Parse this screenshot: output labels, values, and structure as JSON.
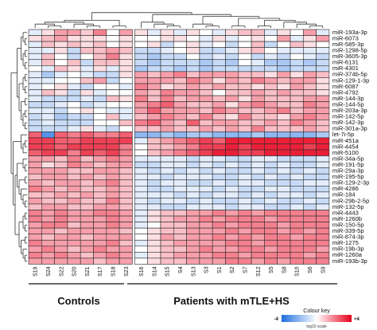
{
  "chart_data": {
    "type": "heatmap",
    "columns": [
      "S19",
      "S24",
      "S22",
      "S20",
      "S21",
      "S17",
      "S18",
      "S23",
      "S16",
      "S14",
      "S15",
      "S4",
      "S13",
      "S3",
      "S1",
      "S2",
      "S7",
      "S12",
      "S5",
      "S8",
      "S10",
      "S6",
      "S9"
    ],
    "rows": [
      "miR-193a-3p",
      "miR-6073",
      "miR-585-3p",
      "miR-1298-5p",
      "miR-3605-3p",
      "miR-6131",
      "miR-4301",
      "miR-374b-5p",
      "miR-129-1-3p",
      "miR-6087",
      "miR-4792",
      "miR-144-3p",
      "miR-144-5p",
      "miR-203a-3p",
      "miR-142-5p",
      "miR-142-3p",
      "miR-301a-3p",
      "let-7i-5p",
      "miR-451a",
      "miR-4454",
      "miR-5100",
      "miR-34a-5p",
      "miR-191-5p",
      "miR-29a-3p",
      "miR-195-5p",
      "miR-129-2-3p",
      "miR-4286",
      "miR-184",
      "miR-29b-2-5p",
      "miR-132-5p",
      "miR-4443",
      "miR-1260b",
      "miR-150-5p",
      "miR-339-5p",
      "miR-874-3p",
      "miR-1275",
      "miR-19b-3p",
      "miR-1260a",
      "miR-193b-3p"
    ],
    "values": [
      [
        -0.5,
        0.5,
        1.5,
        1.5,
        0.8,
        2,
        0,
        1.5,
        0.5,
        -0.5,
        0.5,
        -0.5,
        0.5,
        0,
        -0.5,
        0.5,
        1,
        1,
        -0.5,
        0.5,
        0,
        1.5,
        -0.5
      ],
      [
        0.5,
        1,
        1.5,
        0.5,
        0.5,
        0.5,
        0,
        0.5,
        0,
        0,
        0.5,
        0.5,
        0,
        -0.5,
        0.5,
        -0.5,
        0,
        0.5,
        0,
        1.5,
        -0.5,
        0.5,
        1.5
      ],
      [
        -0.5,
        1,
        0.5,
        1,
        0.5,
        1,
        0,
        0.5,
        0,
        0.5,
        -1,
        0,
        0.5,
        -0.5,
        0,
        -1,
        0,
        1,
        -1,
        0,
        1,
        0.5,
        0
      ],
      [
        -0.5,
        -0.5,
        0.5,
        -1,
        1,
        1,
        1.5,
        1,
        -1,
        -1,
        -0.5,
        0,
        0.5,
        -1,
        -1,
        -0.5,
        0.5,
        1,
        0,
        -0.5,
        -0.5,
        -0.5,
        -0.5
      ],
      [
        -0.5,
        1,
        0,
        -1,
        0,
        1,
        2,
        0.5,
        -1,
        -1.5,
        -1,
        -1,
        0,
        -1,
        -0.5,
        -1,
        0,
        -1,
        -0.5,
        -1,
        0,
        -0.5,
        -1
      ],
      [
        -0.5,
        1,
        0,
        1,
        -1,
        1,
        1,
        0.5,
        -1,
        -1.5,
        -1,
        -1,
        -1,
        -1.5,
        -1,
        -1.5,
        0,
        -0.5,
        -1.5,
        -1.5,
        -1,
        -1.5,
        -1
      ],
      [
        0,
        -0.5,
        1,
        0.5,
        -0.5,
        0.5,
        -0.5,
        0.5,
        -1.5,
        -1,
        -1,
        -1.5,
        -1,
        -1.5,
        -1,
        -1,
        -1,
        -1,
        -1,
        -1.5,
        -1,
        -1,
        -1
      ],
      [
        -0.5,
        -1.5,
        -0.5,
        0,
        -0.5,
        -1,
        -1,
        0.5,
        1.5,
        1,
        1.5,
        2,
        1,
        1.5,
        1.5,
        1.5,
        1,
        1,
        0.5,
        1.5,
        0.5,
        1.5,
        1
      ],
      [
        -0.5,
        -0.5,
        0,
        0,
        1,
        1.5,
        -1,
        0,
        1.5,
        1.5,
        1.5,
        1,
        2,
        1.5,
        0.5,
        1.5,
        1,
        2,
        1.5,
        1,
        1.5,
        1.5,
        0.5
      ],
      [
        -0.5,
        0,
        0.5,
        -0.5,
        -1,
        0,
        0,
        -0.5,
        2,
        1.5,
        0.5,
        1,
        1.5,
        1,
        1.5,
        1,
        1,
        0.5,
        1,
        0.5,
        1.5,
        1,
        0.5
      ],
      [
        -0.5,
        1,
        0.5,
        -1,
        0.5,
        -0.5,
        0,
        0,
        1.5,
        1,
        2,
        1.5,
        1.5,
        1,
        0,
        1,
        1,
        1.5,
        1,
        1.5,
        1,
        1,
        0.5
      ],
      [
        -0.5,
        -1,
        -1,
        -1,
        -0.5,
        -1,
        1,
        0.5,
        2,
        1,
        2,
        1,
        1.5,
        1.5,
        1,
        1.5,
        0.5,
        1.5,
        1,
        1,
        1,
        1.5,
        1.5
      ],
      [
        -1,
        -1,
        -0.5,
        0,
        -1,
        -0.5,
        0,
        0,
        1.5,
        2,
        2.5,
        1.5,
        1,
        1,
        1.5,
        0.5,
        1.5,
        2,
        1.5,
        1,
        1,
        2,
        1.5
      ],
      [
        -0.5,
        -0.5,
        -1,
        0,
        0.5,
        0,
        -0.5,
        -0.5,
        1.5,
        2.5,
        1.5,
        1.5,
        1.5,
        1,
        2,
        1.5,
        1,
        1,
        1.5,
        2,
        1,
        1.5,
        1.5
      ],
      [
        -1,
        -0.5,
        -1.5,
        -1,
        -1,
        0,
        1,
        -0.5,
        1,
        1.5,
        2,
        1.5,
        1,
        2,
        1,
        0.5,
        2,
        1,
        1,
        0.5,
        1.5,
        2,
        1.5
      ],
      [
        -1,
        -0.5,
        -1,
        -1,
        -1,
        0,
        0,
        1,
        2,
        2.5,
        1.5,
        1,
        2.5,
        1,
        1.5,
        1.5,
        1,
        1,
        1.5,
        1,
        2,
        1.5,
        1
      ],
      [
        -1,
        -1,
        -1,
        -0.5,
        0.5,
        -0.5,
        -1,
        0,
        1,
        1,
        1.5,
        1,
        1,
        1.5,
        1,
        1.5,
        1,
        2,
        1,
        1,
        1,
        1.5,
        1
      ],
      [
        2.5,
        -3,
        2.5,
        2,
        2.5,
        2,
        2,
        2.5,
        -2,
        -2,
        -1.5,
        -2,
        -1.5,
        -1.5,
        -2,
        -2,
        -2,
        -1.5,
        -2,
        -2,
        -2,
        -2,
        -1.5
      ],
      [
        3,
        3,
        2.5,
        2.5,
        3,
        3,
        3,
        3,
        -0.5,
        1,
        1.5,
        2,
        2.5,
        3,
        2.5,
        3.5,
        3.5,
        3.5,
        3.5,
        3.5,
        3.5,
        3.5,
        3.5
      ],
      [
        3,
        3,
        2.5,
        3,
        3,
        3,
        3,
        2,
        0,
        1,
        1,
        1.5,
        2,
        3,
        3,
        3.5,
        3,
        3.5,
        3.5,
        3.5,
        3.5,
        3,
        3.5
      ],
      [
        2.5,
        3,
        3,
        2,
        3,
        2.5,
        3,
        2,
        0,
        1,
        1.5,
        2,
        2.5,
        3,
        3.5,
        3.5,
        3,
        3,
        3.5,
        3.5,
        3.5,
        3.5,
        3.5
      ],
      [
        1.5,
        1.5,
        1,
        2,
        1,
        1.5,
        2,
        1.5,
        -0.5,
        -0.5,
        -0.5,
        -0.5,
        -1,
        -0.5,
        -0.5,
        -1,
        -1,
        -0.5,
        -0.5,
        -1,
        -1,
        -1,
        -0.5
      ],
      [
        1.5,
        0.5,
        1,
        2,
        1.5,
        1,
        1.5,
        1.5,
        -1,
        -1,
        -0.5,
        -0.5,
        -1,
        -0.5,
        -1,
        -0.5,
        -1,
        -0.5,
        -1,
        -0.5,
        -1,
        -1,
        -0.5
      ],
      [
        1.5,
        1.5,
        1.5,
        1,
        1,
        1.5,
        1.5,
        1,
        -0.5,
        -1,
        -0.5,
        -1,
        -0.5,
        -1,
        -0.5,
        -1,
        -1,
        -0.5,
        -1,
        -0.5,
        -1,
        -0.5,
        -1
      ],
      [
        1,
        1.5,
        1.5,
        1,
        1.5,
        1,
        1.5,
        1,
        -0.5,
        -0.5,
        -1,
        -0.5,
        -0.5,
        -0.5,
        -1,
        -1,
        -0.5,
        -1,
        -0.5,
        -1,
        -0.5,
        -1,
        -1
      ],
      [
        1.5,
        1,
        1.5,
        1.5,
        1,
        1.5,
        2,
        1,
        -0.5,
        -1,
        -0.5,
        -0.5,
        -1,
        -1,
        -0.5,
        -1,
        -0.5,
        -0.5,
        -1,
        -1,
        -1,
        -0.5,
        -0.5
      ],
      [
        2,
        1.5,
        1,
        1.5,
        1,
        1,
        1.5,
        1,
        -0.5,
        -1,
        -1,
        -0.5,
        -0.5,
        -0.5,
        -1,
        -0.5,
        -1,
        -1,
        -0.5,
        -0.5,
        -1,
        -1,
        -1
      ],
      [
        1,
        1,
        1.5,
        1,
        1.5,
        1,
        1.5,
        1,
        -0.5,
        -0.5,
        -0.5,
        -1,
        -0.5,
        -1,
        -0.5,
        -0.5,
        -1,
        -0.5,
        -1,
        -0.5,
        -0.5,
        -1,
        -0.5
      ],
      [
        1.5,
        1,
        1,
        1.5,
        1,
        1,
        2,
        1,
        -0.5,
        -1,
        -0.5,
        -0.5,
        -1,
        -0.5,
        -1,
        -1,
        -0.5,
        -1,
        -0.5,
        -1,
        -1,
        -0.5,
        -1
      ],
      [
        1,
        1.5,
        1.5,
        1,
        1,
        1.5,
        1.5,
        1,
        -0.5,
        -0.5,
        -1,
        -1,
        -0.5,
        -0.5,
        -0.5,
        -1,
        -0.5,
        -0.5,
        -1,
        -1,
        -0.5,
        -1,
        -0.5
      ],
      [
        2,
        1.5,
        2,
        1.5,
        1.5,
        2,
        2,
        1.5,
        -0.5,
        0.5,
        1,
        1,
        1.5,
        1.5,
        2,
        1.5,
        2,
        1.5,
        2,
        2,
        2,
        2,
        2
      ],
      [
        2,
        1.5,
        2,
        1.5,
        1.5,
        1.5,
        2,
        1.5,
        -0.5,
        0.5,
        1,
        1.5,
        1.5,
        2,
        1.5,
        2,
        2,
        2,
        1.5,
        2,
        2,
        2,
        2
      ],
      [
        1.5,
        2,
        2,
        1,
        1.5,
        1.5,
        2,
        1.5,
        -0.5,
        0,
        1,
        1,
        1.5,
        1.5,
        2,
        1.5,
        2,
        2,
        2,
        1.5,
        2,
        2,
        2
      ],
      [
        1.5,
        1.5,
        1,
        1.5,
        1.5,
        1.5,
        1.5,
        1,
        0,
        0.5,
        1,
        1,
        1.5,
        1.5,
        1.5,
        2,
        1.5,
        2,
        2,
        1.5,
        2,
        1.5,
        2
      ],
      [
        1.5,
        1,
        1.5,
        1.5,
        1,
        1.5,
        1.5,
        1.5,
        0,
        0.5,
        1.5,
        1,
        1.5,
        1.5,
        2,
        1.5,
        2,
        1.5,
        2,
        2,
        1.5,
        2,
        2
      ],
      [
        2,
        1.5,
        1.5,
        1.5,
        1.5,
        1.5,
        2,
        1,
        -0.5,
        0.5,
        1,
        1.5,
        1.5,
        1.5,
        1.5,
        2,
        2,
        1.5,
        2,
        2,
        2,
        2,
        2
      ],
      [
        1.5,
        2,
        1.5,
        1,
        1.5,
        2,
        1.5,
        1.5,
        0,
        0.5,
        1,
        1,
        1.5,
        2,
        1.5,
        1.5,
        2,
        2,
        1.5,
        2,
        2,
        2,
        1.5
      ],
      [
        2,
        1.5,
        2,
        1.5,
        1,
        1.5,
        2,
        1.5,
        -0.5,
        0.5,
        1,
        1.5,
        1.5,
        1.5,
        2,
        2,
        1.5,
        2,
        2,
        2,
        2,
        1.5,
        2
      ],
      [
        1.5,
        1.5,
        1.5,
        1.5,
        1.5,
        1,
        1.5,
        1.5,
        0,
        0.5,
        1,
        1,
        1.5,
        1.5,
        1.5,
        2,
        2,
        1.5,
        2,
        1.5,
        2,
        2,
        2
      ]
    ],
    "groups": [
      {
        "label": "Controls",
        "from": 0,
        "to": 7
      },
      {
        "label": "Patients with mTLE+HS",
        "from": 8,
        "to": 22
      }
    ],
    "colour_key": {
      "title": "Colour key",
      "min_label": "-4",
      "max_label": "+4",
      "scale_label": "log10 scale",
      "range": [
        -4,
        4
      ],
      "low_color": "#1f6fe0",
      "mid_color": "#ffffff",
      "high_color": "#e8001c"
    }
  }
}
